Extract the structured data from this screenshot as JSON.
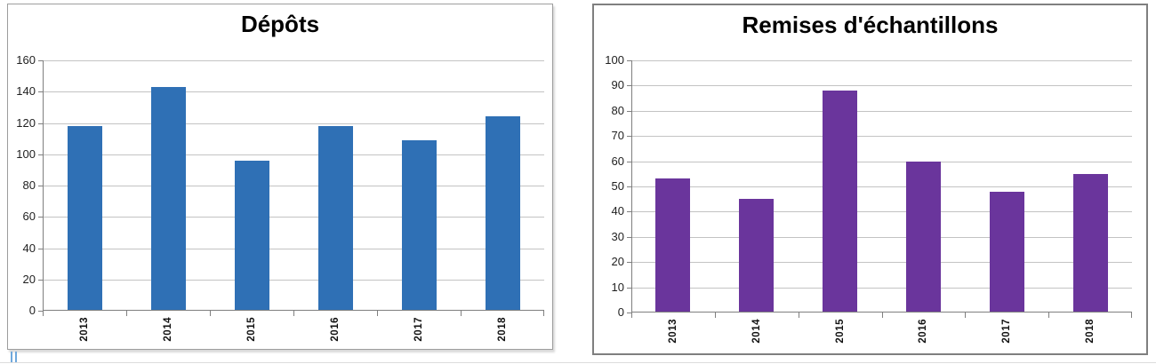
{
  "decorations": {
    "cursor_mark_color": "#6fa8dc",
    "gridline_color": "#c3c3c3",
    "axis_color": "#7f7f7f"
  },
  "chart_data": [
    {
      "type": "bar",
      "title": "Dépôts",
      "categories": [
        "2013",
        "2014",
        "2015",
        "2016",
        "2017",
        "2018"
      ],
      "values": [
        118,
        143,
        96,
        118,
        109,
        124
      ],
      "xlabel": "",
      "ylabel": "",
      "ylim": [
        0,
        160
      ],
      "ytick_step": 20,
      "bar_color": "#2f70b5",
      "grid": true,
      "legend": "none"
    },
    {
      "type": "bar",
      "title": "Remises d'échantillons",
      "categories": [
        "2013",
        "2014",
        "2015",
        "2016",
        "2017",
        "2018"
      ],
      "values": [
        53,
        45,
        88,
        60,
        48,
        55
      ],
      "xlabel": "",
      "ylabel": "",
      "ylim": [
        0,
        100
      ],
      "ytick_step": 10,
      "bar_color": "#6a359c",
      "grid": true,
      "legend": "none"
    }
  ]
}
